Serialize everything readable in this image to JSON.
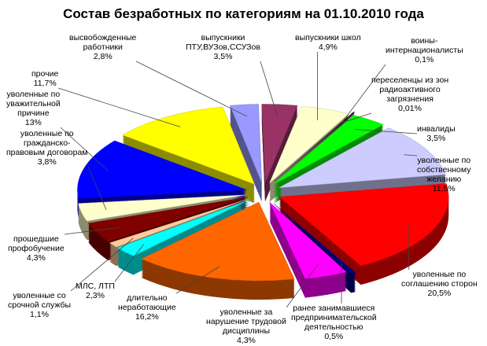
{
  "chart_data": {
    "type": "pie",
    "style": "3d-exploded",
    "title": "Состав безработных по категориям на 01.10.2010 года",
    "slices": [
      {
        "name": [
          "высвобожденные",
          "работники"
        ],
        "value": 2.8,
        "label": "2,8%",
        "color": "#9999FF"
      },
      {
        "name": [
          "выпускники",
          "ПТУ,ВУЗов,ССУЗов"
        ],
        "value": 3.5,
        "label": "3,5%",
        "color": "#993366"
      },
      {
        "name": [
          "выпускники школ"
        ],
        "value": 4.9,
        "label": "4,9%",
        "color": "#FFFFCC"
      },
      {
        "name": [
          "воины-",
          "интернационалисты"
        ],
        "value": 0.1,
        "label": "0,1%",
        "color": "#000000"
      },
      {
        "name": [
          "переселенцы  из зон",
          "радиоактивного",
          "загрязнения"
        ],
        "value": 0.01,
        "label": "0,01%",
        "color": "#333333"
      },
      {
        "name": [
          "инвалиды"
        ],
        "value": 3.5,
        "label": "3,5%",
        "color": "#00FF00"
      },
      {
        "name": [
          "уволенные по",
          "собственному",
          "желанию"
        ],
        "value": 11.5,
        "label": "11,5%",
        "color": "#CCCCFF"
      },
      {
        "name": [
          "уволенные по",
          "соглашению сторон"
        ],
        "value": 20.5,
        "label": "20,5%",
        "color": "#FF0000"
      },
      {
        "name": [
          "ранее занимавшиеся",
          "предпринимательской",
          "деятельностью"
        ],
        "value": 0.5,
        "label": "0,5%",
        "color": "#000080"
      },
      {
        "name": [
          "уволенные за",
          "нарушение трудовой",
          "дисциплины"
        ],
        "value": 4.3,
        "label": "4,3%",
        "color": "#FF00FF"
      },
      {
        "name": [
          "длительно",
          "неработающие"
        ],
        "value": 16.2,
        "label": "16,2%",
        "color": "#FF6600"
      },
      {
        "name": [
          "МЛС, ЛТП"
        ],
        "value": 2.3,
        "label": "2,3%",
        "color": "#00FFFF"
      },
      {
        "name": [
          "уволенные со",
          "срочной службы"
        ],
        "value": 1.1,
        "label": "1,1%",
        "color": "#FFCC99"
      },
      {
        "name": [
          "прошедшие",
          "профобучение"
        ],
        "value": 4.3,
        "label": "4,3%",
        "color": "#800000"
      },
      {
        "name": [
          "уволенные по",
          "гражданско-",
          "правовым договорам"
        ],
        "value": 3.8,
        "label": "3,8%",
        "color": "#FFFFCC"
      },
      {
        "name": [
          "уволенные по",
          "уважительной",
          "причине"
        ],
        "value": 13,
        "label": "13%",
        "color": "#0000FF"
      },
      {
        "name": [
          "прочие"
        ],
        "value": 11.7,
        "label": "11,7%",
        "color": "#FFFF00"
      }
    ]
  }
}
